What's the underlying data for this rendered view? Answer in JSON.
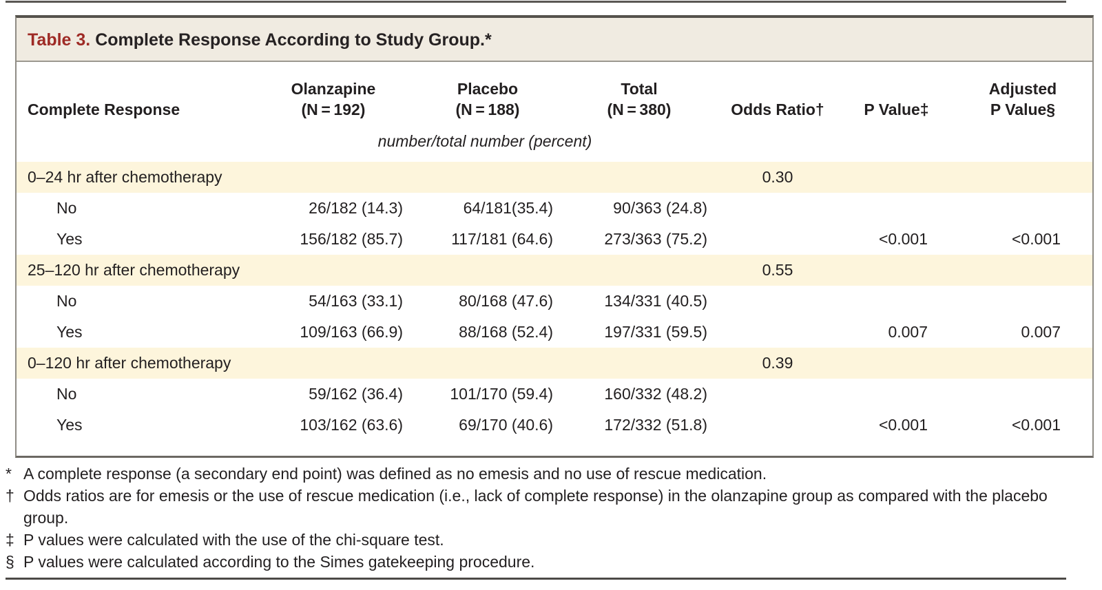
{
  "title": {
    "label": "Table 3.",
    "text": "Complete Response According to Study Group.*"
  },
  "table": {
    "columns": {
      "label": "Complete Response",
      "olanzapine": {
        "line1": "Olanzapine",
        "line2": "(N = 192)"
      },
      "placebo": {
        "line1": "Placebo",
        "line2": "(N = 188)"
      },
      "total": {
        "line1": "Total",
        "line2": "(N = 380)"
      },
      "odds_ratio": "Odds Ratio†",
      "p_value": "P Value‡",
      "adj_p_value": {
        "line1": "Adjusted",
        "line2": "P Value§"
      }
    },
    "subheader": "number/total number (percent)",
    "rows": [
      {
        "type": "group",
        "label": "0–24 hr after chemotherapy",
        "olanzapine": "",
        "placebo": "",
        "total": "",
        "odds_ratio": "0.30",
        "p_value": "",
        "adj_p_value": ""
      },
      {
        "type": "sub",
        "label": "No",
        "olanzapine": "26/182 (14.3)",
        "placebo": "64/181(35.4)",
        "total": "90/363 (24.8)",
        "odds_ratio": "",
        "p_value": "",
        "adj_p_value": ""
      },
      {
        "type": "sub",
        "label": "Yes",
        "olanzapine": "156/182 (85.7)",
        "placebo": "117/181 (64.6)",
        "total": "273/363 (75.2)",
        "odds_ratio": "",
        "p_value": "<0.001",
        "adj_p_value": "<0.001"
      },
      {
        "type": "group",
        "label": "25–120 hr after chemotherapy",
        "olanzapine": "",
        "placebo": "",
        "total": "",
        "odds_ratio": "0.55",
        "p_value": "",
        "adj_p_value": ""
      },
      {
        "type": "sub",
        "label": "No",
        "olanzapine": "54/163 (33.1)",
        "placebo": "80/168 (47.6)",
        "total": "134/331 (40.5)",
        "odds_ratio": "",
        "p_value": "",
        "adj_p_value": ""
      },
      {
        "type": "sub",
        "label": "Yes",
        "olanzapine": "109/163 (66.9)",
        "placebo": "88/168 (52.4)",
        "total": "197/331 (59.5)",
        "odds_ratio": "",
        "p_value": "0.007",
        "adj_p_value": "0.007"
      },
      {
        "type": "group",
        "label": "0–120 hr after chemotherapy",
        "olanzapine": "",
        "placebo": "",
        "total": "",
        "odds_ratio": "0.39",
        "p_value": "",
        "adj_p_value": ""
      },
      {
        "type": "sub",
        "label": "No",
        "olanzapine": "59/162 (36.4)",
        "placebo": "101/170 (59.4)",
        "total": "160/332 (48.2)",
        "odds_ratio": "",
        "p_value": "",
        "adj_p_value": ""
      },
      {
        "type": "sub",
        "label": "Yes",
        "olanzapine": "103/162 (63.6)",
        "placebo": "69/170 (40.6)",
        "total": "172/332 (51.8)",
        "odds_ratio": "",
        "p_value": "<0.001",
        "adj_p_value": "<0.001"
      }
    ]
  },
  "footnotes": [
    {
      "symbol": "*",
      "text": "A complete response (a secondary end point) was defined as no emesis and no use of rescue medication."
    },
    {
      "symbol": "†",
      "text": "Odds ratios are for emesis or the use of rescue medication (i.e., lack of complete response) in the olanzapine group as compared with the placebo group."
    },
    {
      "symbol": "‡",
      "text": "P values were calculated with the use of the chi-square test."
    },
    {
      "symbol": "§",
      "text": "P values were calculated according to the Simes gatekeeping procedure."
    }
  ],
  "colors": {
    "title_accent": "#9E2A25",
    "title_background": "#F0EBE1",
    "row_highlight": "#FDF5DC",
    "border_dark": "#55524C",
    "border_gray": "#8F8C85",
    "text": "#221F20"
  }
}
